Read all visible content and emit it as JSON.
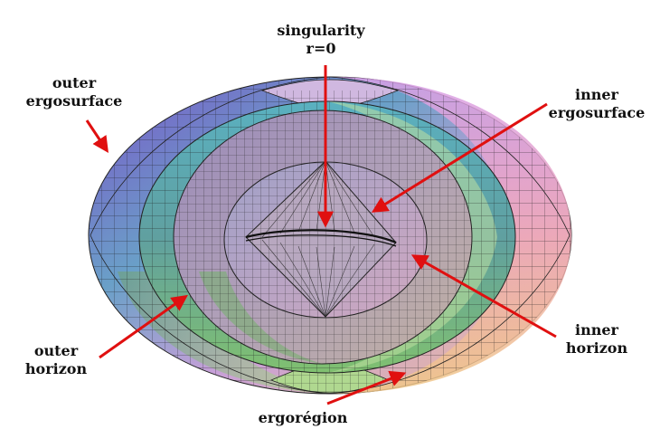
{
  "labels": {
    "singularity": {
      "line1": "singularity",
      "line2": "r=0"
    },
    "outer_ergosurface": {
      "line1": "outer",
      "line2": "ergosurface"
    },
    "inner_ergosurface": {
      "line1": "inner",
      "line2": "ergosurface"
    },
    "outer_horizon": {
      "line1": "outer",
      "line2": "horizon"
    },
    "inner_horizon": {
      "line1": "inner",
      "line2": "horizon"
    },
    "ergoregion": {
      "line1": "ergorégion"
    }
  },
  "colors": {
    "arrow": "#e01010",
    "mesh": "#1a1a1a",
    "outer_left": "#8a5fd0",
    "outer_right": "#f0a8c0",
    "outer_bottom": "#9ad080",
    "horizon": "#60b0a0",
    "inner_ergo": "#b89ab0",
    "inner_horizon": "#a8a0c0"
  }
}
